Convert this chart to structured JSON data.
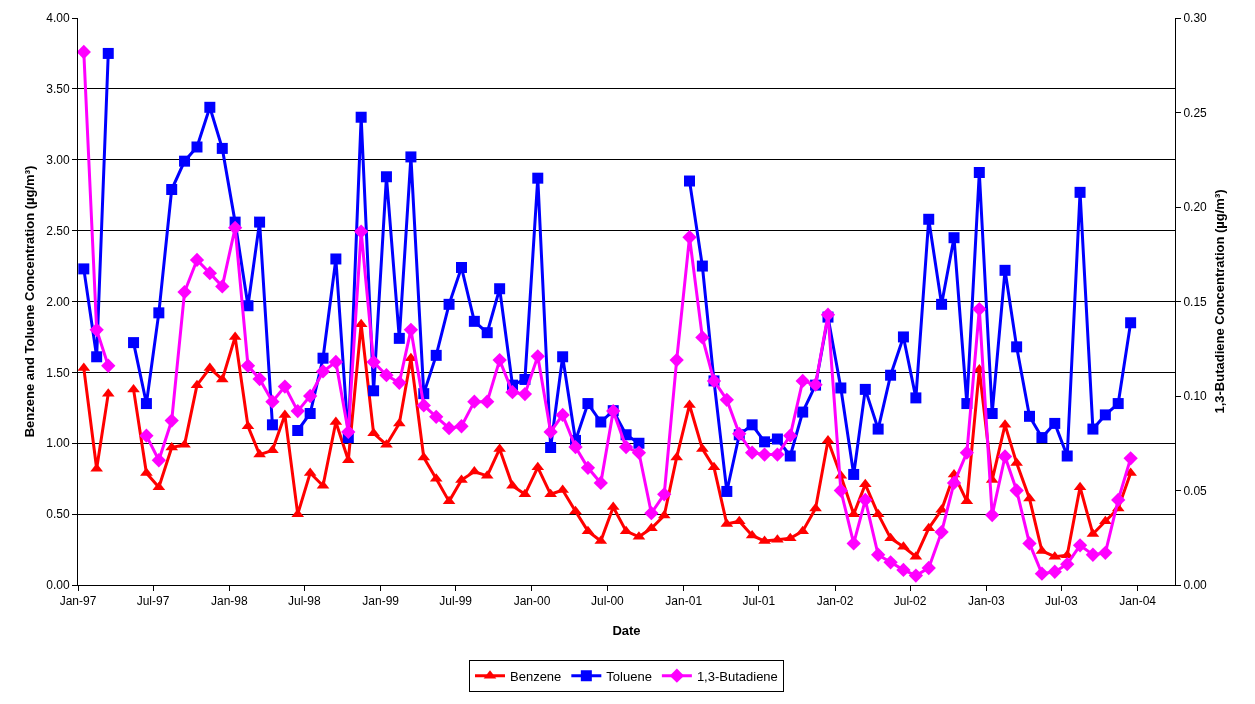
{
  "chart_data": {
    "type": "line",
    "xlabel": "Date",
    "ylabel": "Benzene and Toluene Concentration (µg/m³)",
    "y2label": "1,3-Butadiene Concentration (µg/m³)",
    "x": [
      "1997-01-15",
      "1997-02-15",
      "1997-03-15",
      "1997-04-15",
      "1997-05-15",
      "1997-06-15",
      "1997-07-15",
      "1997-08-15",
      "1997-09-15",
      "1997-10-15",
      "1997-11-15",
      "1997-12-15",
      "1998-01-15",
      "1998-02-15",
      "1998-03-15",
      "1998-04-15",
      "1998-05-15",
      "1998-06-15",
      "1998-07-15",
      "1998-08-15",
      "1998-09-15",
      "1998-10-15",
      "1998-11-15",
      "1998-12-15",
      "1999-01-15",
      "1999-02-15",
      "1999-03-15",
      "1999-04-15",
      "1999-05-15",
      "1999-06-15",
      "1999-07-15",
      "1999-08-15",
      "1999-09-15",
      "1999-10-15",
      "1999-11-15",
      "1999-12-15",
      "2000-01-15",
      "2000-02-15",
      "2000-03-15",
      "2000-04-15",
      "2000-05-15",
      "2000-06-15",
      "2000-07-15",
      "2000-08-15",
      "2000-09-15",
      "2000-10-15",
      "2000-11-15",
      "2000-12-15",
      "2001-01-15",
      "2001-02-15",
      "2001-03-15",
      "2001-04-15",
      "2001-05-15",
      "2001-06-15",
      "2001-07-15",
      "2001-08-15",
      "2001-09-15",
      "2001-10-15",
      "2001-11-15",
      "2001-12-15",
      "2002-01-15",
      "2002-02-15",
      "2002-03-15",
      "2002-04-15",
      "2002-05-15",
      "2002-06-15",
      "2002-07-15",
      "2002-08-15",
      "2002-09-15",
      "2002-10-15",
      "2002-11-15",
      "2002-12-15",
      "2003-01-15",
      "2003-02-15",
      "2003-03-15",
      "2003-04-15",
      "2003-05-15",
      "2003-06-15",
      "2003-07-15",
      "2003-08-15",
      "2003-09-15",
      "2003-10-15",
      "2003-11-15",
      "2003-12-15"
    ],
    "series": [
      {
        "name": "Benzene",
        "color": "#ff0000",
        "marker": "triangle",
        "values": [
          1.53,
          0.82,
          1.35,
          null,
          1.38,
          0.79,
          0.69,
          0.97,
          0.99,
          1.41,
          1.53,
          1.45,
          1.75,
          1.12,
          0.92,
          0.95,
          1.2,
          0.5,
          0.79,
          0.7,
          1.15,
          0.88,
          1.84,
          1.07,
          0.99,
          1.14,
          1.6,
          0.9,
          0.75,
          0.59,
          0.74,
          0.8,
          0.77,
          0.96,
          0.7,
          0.64,
          0.83,
          0.64,
          0.67,
          0.52,
          0.38,
          0.31,
          0.55,
          0.38,
          0.34,
          0.4,
          0.49,
          0.9,
          1.27,
          0.96,
          0.83,
          0.43,
          0.45,
          0.35,
          0.31,
          0.32,
          0.33,
          0.38,
          0.54,
          1.02,
          0.77,
          0.5,
          0.71,
          0.5,
          0.33,
          0.27,
          0.2,
          0.4,
          0.53,
          0.78,
          0.59,
          1.52,
          0.74,
          1.13,
          0.86,
          0.61,
          0.24,
          0.2,
          0.21,
          0.69,
          0.36,
          0.45,
          0.54,
          0.79
        ]
      },
      {
        "name": "Toluene",
        "color": "#0000ff",
        "marker": "square",
        "values": [
          2.23,
          1.61,
          3.75,
          null,
          1.71,
          1.28,
          1.92,
          2.79,
          2.99,
          3.09,
          3.37,
          3.08,
          2.56,
          1.97,
          2.56,
          1.13,
          null,
          1.09,
          1.21,
          1.6,
          2.3,
          1.04,
          3.3,
          1.37,
          2.88,
          1.74,
          3.02,
          1.35,
          1.62,
          1.98,
          2.24,
          1.86,
          1.78,
          2.09,
          1.41,
          1.45,
          2.87,
          0.97,
          1.61,
          1.02,
          1.28,
          1.15,
          1.23,
          1.06,
          1.0,
          null,
          null,
          null,
          2.85,
          2.25,
          1.44,
          0.66,
          1.06,
          1.13,
          1.01,
          1.03,
          0.91,
          1.22,
          1.41,
          1.89,
          1.39,
          0.78,
          1.38,
          1.1,
          1.48,
          1.75,
          1.32,
          2.58,
          1.98,
          2.45,
          1.28,
          2.91,
          1.21,
          2.22,
          1.68,
          1.19,
          1.04,
          1.14,
          0.91,
          2.77,
          1.1,
          1.2,
          1.28,
          1.85
        ]
      },
      {
        "name": "1,3-Butadiene",
        "color": "#ff00ff",
        "marker": "diamond",
        "axis": "y2",
        "values": [
          0.282,
          0.135,
          0.116,
          null,
          null,
          0.079,
          0.066,
          0.087,
          0.155,
          0.172,
          0.165,
          0.158,
          0.189,
          0.116,
          0.109,
          0.097,
          0.105,
          0.092,
          0.1,
          0.113,
          0.118,
          0.081,
          0.187,
          0.118,
          0.111,
          0.107,
          0.135,
          0.095,
          0.089,
          0.083,
          0.084,
          0.097,
          0.097,
          0.119,
          0.102,
          0.101,
          0.121,
          0.081,
          0.09,
          0.073,
          0.062,
          0.054,
          0.092,
          0.073,
          0.07,
          0.038,
          0.048,
          0.119,
          0.184,
          0.131,
          0.108,
          0.098,
          0.08,
          0.07,
          0.069,
          0.069,
          0.079,
          0.108,
          0.106,
          0.143,
          0.05,
          0.022,
          0.045,
          0.016,
          0.012,
          0.008,
          0.005,
          0.009,
          0.028,
          0.054,
          0.07,
          0.146,
          0.037,
          0.068,
          0.05,
          0.022,
          0.006,
          0.007,
          0.011,
          0.021,
          0.016,
          0.017,
          0.045,
          0.067
        ]
      }
    ],
    "xlim": [
      "1997-01-01",
      "2004-03-31"
    ],
    "xticks": [
      {
        "value": "1997-01-01",
        "label": "Jan-97"
      },
      {
        "value": "1997-07-01",
        "label": "Jul-97"
      },
      {
        "value": "1998-01-01",
        "label": "Jan-98"
      },
      {
        "value": "1998-07-01",
        "label": "Jul-98"
      },
      {
        "value": "1999-01-01",
        "label": "Jan-99"
      },
      {
        "value": "1999-07-01",
        "label": "Jul-99"
      },
      {
        "value": "2000-01-01",
        "label": "Jan-00"
      },
      {
        "value": "2000-07-01",
        "label": "Jul-00"
      },
      {
        "value": "2001-01-01",
        "label": "Jan-01"
      },
      {
        "value": "2001-07-01",
        "label": "Jul-01"
      },
      {
        "value": "2002-01-01",
        "label": "Jan-02"
      },
      {
        "value": "2002-07-01",
        "label": "Jul-02"
      },
      {
        "value": "2003-01-01",
        "label": "Jan-03"
      },
      {
        "value": "2003-07-01",
        "label": "Jul-03"
      },
      {
        "value": "2004-01-01",
        "label": "Jan-04"
      }
    ],
    "ylim": [
      0,
      4
    ],
    "yticks": [
      {
        "value": 0,
        "label": "0.00"
      },
      {
        "value": 0.5,
        "label": "0.50"
      },
      {
        "value": 1,
        "label": "1.00"
      },
      {
        "value": 1.5,
        "label": "1.50"
      },
      {
        "value": 2,
        "label": "2.00"
      },
      {
        "value": 2.5,
        "label": "2.50"
      },
      {
        "value": 3,
        "label": "3.00"
      },
      {
        "value": 3.5,
        "label": "3.50"
      },
      {
        "value": 4,
        "label": "4.00"
      }
    ],
    "y2lim": [
      0,
      0.3
    ],
    "y2ticks": [
      {
        "value": 0,
        "label": "0.00"
      },
      {
        "value": 0.05,
        "label": "0.05"
      },
      {
        "value": 0.1,
        "label": "0.10"
      },
      {
        "value": 0.15,
        "label": "0.15"
      },
      {
        "value": 0.2,
        "label": "0.20"
      },
      {
        "value": 0.25,
        "label": "0.25"
      },
      {
        "value": 0.3,
        "label": "0.30"
      }
    ],
    "grid": "y",
    "legend": "bottom",
    "line_style": "solid"
  }
}
